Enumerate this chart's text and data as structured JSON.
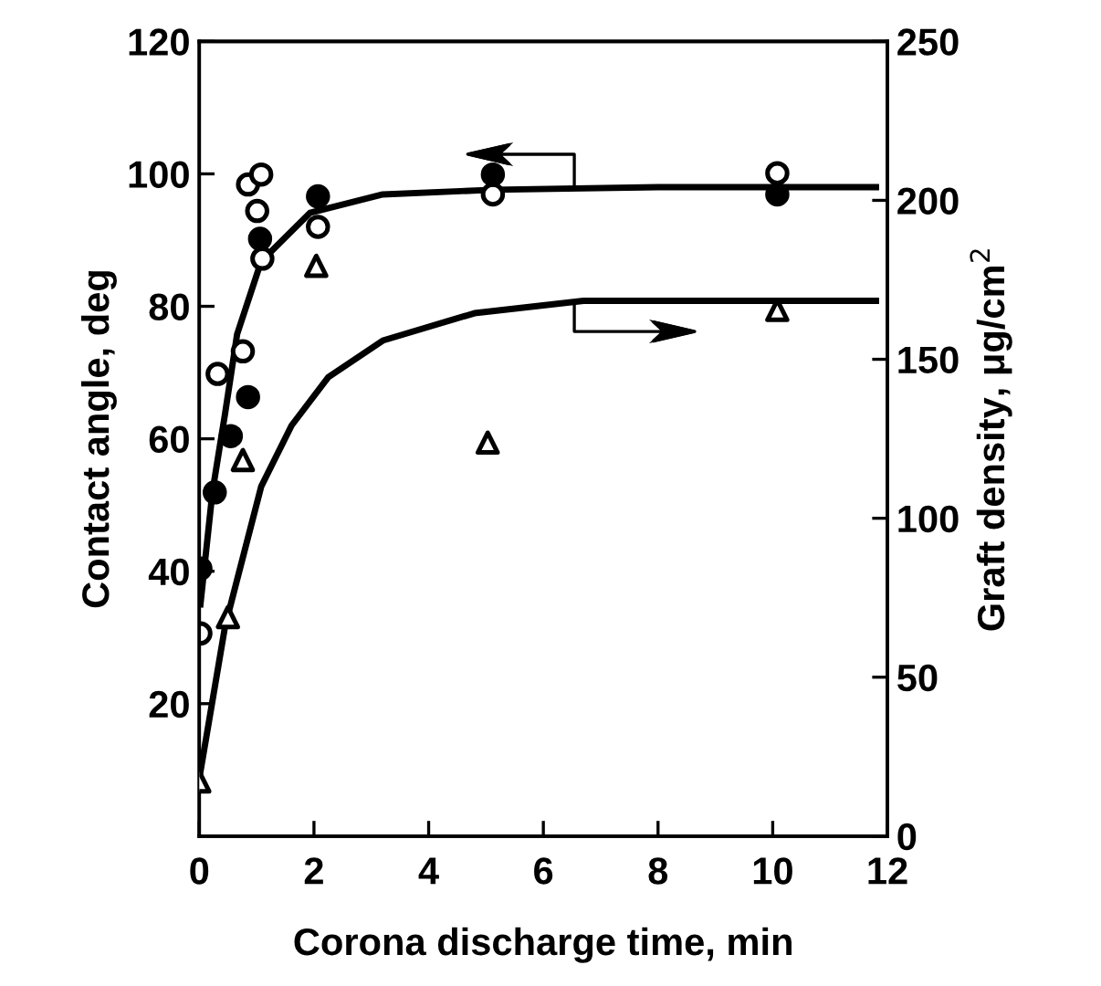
{
  "chart_data": {
    "type": "scatter",
    "xlabel": "Corona discharge time, min",
    "ylabel": "Contact angle, deg",
    "y2label": "Graft density, μg/cm$^{2}$",
    "xlim": [
      0,
      12
    ],
    "xticks": [
      0,
      2,
      4,
      6,
      8,
      10,
      12
    ],
    "ylim": [
      0,
      120
    ],
    "yticks": [
      20,
      40,
      60,
      80,
      100,
      120
    ],
    "y2lim": [
      0,
      250
    ],
    "y2ticks": [
      0,
      50,
      100,
      150,
      200,
      250
    ],
    "series": [
      {
        "marker": "circle",
        "color": "#ffffff",
        "x": [
          0.02,
          0.32,
          0.76,
          0.85,
          1.01,
          1.08,
          1.1,
          2.07,
          5.12,
          10.08
        ],
        "values": [
          30.6,
          69.8,
          73.2,
          98.4,
          94.4,
          99.9,
          87.2,
          92.0,
          96.9,
          100.1
        ]
      },
      {
        "marker": "circle",
        "color": "#000000",
        "x": [
          0.02,
          0.27,
          0.55,
          0.85,
          1.06,
          2.07,
          5.12,
          10.08
        ],
        "values": [
          40.4,
          51.9,
          60.4,
          66.3,
          90.2,
          96.6,
          99.9,
          96.9
        ]
      },
      {
        "marker": "triangle",
        "color": "#ffffff",
        "axis": "y2",
        "x": [
          0,
          0.5,
          0.76,
          2.04,
          5.03,
          10.08
        ],
        "values": [
          17.2,
          68.9,
          118.3,
          179.4,
          123.8,
          165.5
        ]
      },
      {
        "type": "line",
        "marker": "none",
        "line_style": "solid",
        "color": "#000000",
        "x": [
          0.02,
          0.23,
          0.45,
          0.66,
          1.08,
          1.93,
          3.2,
          5.12,
          8,
          11.8
        ],
        "values": [
          35,
          52,
          63.8,
          75.8,
          86.8,
          94.1,
          96.9,
          97.6,
          98,
          98
        ]
      },
      {
        "type": "line",
        "marker": "none",
        "line_style": "solid",
        "color": "#000000",
        "axis": "y2",
        "x": [
          0,
          0.45,
          1.08,
          1.61,
          2.25,
          3.2,
          4.8,
          6.7,
          9,
          11.8
        ],
        "values": [
          18.1,
          66,
          110,
          129.2,
          144.4,
          155.9,
          164.5,
          168.4,
          168.4,
          168.4
        ]
      }
    ]
  }
}
